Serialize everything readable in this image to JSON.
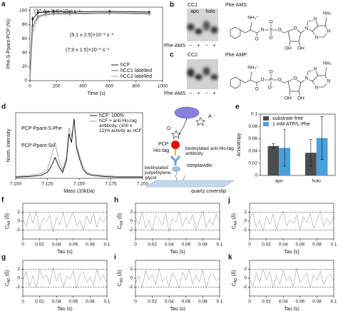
{
  "chart_data": [
    {
      "type": "line",
      "label": "a",
      "xlabel": "Time (s)",
      "ylabel": "Phe-S-Ppant-PCP (%)",
      "x": [
        0,
        20,
        60,
        120,
        180,
        300,
        600,
        900
      ],
      "series": [
        {
          "name": "hCF",
          "color": "#000000",
          "values": [
            0,
            88,
            97,
            98,
            99,
            98,
            99,
            98
          ],
          "errors": [
            0,
            4,
            3,
            3,
            2,
            3,
            2,
            2
          ]
        },
        {
          "name": "hCC1 labelled",
          "color": "#555555",
          "values": [
            0,
            78,
            92,
            95,
            96,
            96,
            97,
            96
          ],
          "errors": [
            0,
            6,
            4,
            3,
            3,
            3,
            3,
            3
          ]
        },
        {
          "name": "hCC2 labelled",
          "color": "#9a9a9a",
          "values": [
            0,
            70,
            90,
            94,
            95,
            95,
            96,
            95
          ],
          "errors": [
            0,
            7,
            5,
            4,
            3,
            4,
            3,
            3
          ]
        }
      ],
      "xlim": [
        0,
        1000
      ],
      "xticks": [
        0,
        200,
        400,
        600,
        800,
        1000
      ],
      "ylim": [
        0,
        105
      ],
      "yticks": [
        0,
        20,
        40,
        60,
        80,
        100
      ],
      "legend": "lower right",
      "annotations": [
        "(10.4 ± 3.4)×10⁻² s⁻¹",
        "(9.1 ± 2.5)×10⁻² s⁻¹",
        "(7.9 ± 1.5)×10⁻² s⁻¹"
      ]
    },
    {
      "type": "line",
      "label": "d",
      "xlabel": "Mass (10kDa)",
      "ylabel": "Norm. intensity",
      "x": [
        7.1,
        7.11,
        7.12,
        7.125,
        7.128,
        7.131,
        7.134,
        7.137,
        7.14,
        7.142,
        7.144,
        7.146,
        7.148,
        7.15,
        7.153,
        7.156,
        7.16,
        7.17,
        7.18,
        7.19,
        7.2
      ],
      "series": [
        {
          "name": "hCF: 100%",
          "color": "#000000",
          "style": "solid",
          "values": [
            0.02,
            0.03,
            0.05,
            0.1,
            0.2,
            0.35,
            0.2,
            0.1,
            0.3,
            0.75,
            0.6,
            1.0,
            0.5,
            0.35,
            0.15,
            0.08,
            0.05,
            0.03,
            0.02,
            0.02,
            0.02
          ]
        },
        {
          "name": "hCF + anti-His-tag antibody: (100 ± 12)% activity as hCF",
          "color": "#444444",
          "style": "dotted",
          "values": [
            0.03,
            0.05,
            0.08,
            0.15,
            0.35,
            0.6,
            0.3,
            0.15,
            0.35,
            0.85,
            0.7,
            0.95,
            0.55,
            0.4,
            0.2,
            0.1,
            0.07,
            0.05,
            0.03,
            0.03,
            0.03
          ]
        }
      ],
      "xlim": [
        7.1,
        7.2
      ],
      "xticks": [
        {
          "value": 7.1,
          "label": "7.100"
        },
        {
          "value": 7.125,
          "label": "7.125"
        },
        {
          "value": 7.15,
          "label": "7.150"
        },
        {
          "value": 7.175,
          "label": "7.175"
        },
        {
          "value": 7.2,
          "label": "7.200"
        }
      ],
      "ylim": [
        0,
        1.1
      ],
      "legend": "upper right",
      "annotations": [
        "PCP-Ppant-S-Phe",
        "PCP-Ppant-SH"
      ]
    },
    {
      "type": "bar",
      "label": "e",
      "ylabel": "Anisotropy",
      "categories": [
        "apo",
        "holo"
      ],
      "series": [
        {
          "name": "substrate-free",
          "color": "#4d4d4d",
          "values": [
            0.048,
            0.037
          ],
          "errors": [
            0.004,
            0.022
          ]
        },
        {
          "name": "1 mM ATP/L-Phe",
          "color": "#4a9fdd",
          "values": [
            0.045,
            0.061
          ],
          "errors": [
            0.03,
            0.035
          ]
        }
      ],
      "ylim": [
        0,
        0.1
      ],
      "yticks": [
        0,
        0.02,
        0.04,
        0.06,
        0.08,
        0.1
      ],
      "legend": "upper left"
    },
    {
      "type": "line",
      "label": "f",
      "xlabel": "Tau (s)",
      "ylabel": [
        "C",
        "AA",
        " (δ)"
      ],
      "x": [
        0,
        0.004,
        0.008,
        0.012,
        0.016,
        0.02,
        0.024,
        0.028,
        0.032,
        0.036,
        0.04,
        0.044,
        0.048,
        0.052,
        0.056,
        0.06,
        0.064,
        0.068,
        0.072,
        0.076,
        0.08,
        0.084,
        0.088,
        0.092,
        0.096,
        0.1
      ],
      "series": [
        {
          "color": "#8c8c8c",
          "values": [
            0.3,
            -1.2,
            1.8,
            -0.5,
            2.3,
            -1.9,
            0.7,
            -0.2,
            1.4,
            -2.4,
            0.9,
            -0.8,
            1.9,
            -1.5,
            0.4,
            2.1,
            -1.1,
            0.2,
            -2.0,
            1.2,
            -0.6,
            1.7,
            -1.4,
            0.8,
            -0.3,
            1.1
          ]
        }
      ],
      "xlim": [
        0,
        0.1
      ],
      "xticks": [
        0,
        0.02,
        0.04,
        0.06,
        0.08,
        0.1
      ],
      "ylim": [
        -4,
        4
      ],
      "yticks": [
        -2,
        0,
        2
      ],
      "reference_lines": [
        -2,
        2
      ]
    },
    {
      "type": "line",
      "label": "g",
      "xlabel": "Tau (s)",
      "ylabel": [
        "C",
        "AD",
        " (δ)"
      ],
      "x": [
        0,
        0.004,
        0.008,
        0.012,
        0.016,
        0.02,
        0.024,
        0.028,
        0.032,
        0.036,
        0.04,
        0.044,
        0.048,
        0.052,
        0.056,
        0.06,
        0.064,
        0.068,
        0.072,
        0.076,
        0.08,
        0.084,
        0.088,
        0.092,
        0.096,
        0.1
      ],
      "series": [
        {
          "color": "#8c8c8c",
          "values": [
            -0.4,
            1.5,
            -1.8,
            0.6,
            -2.2,
            1.9,
            -0.1,
            0.8,
            -1.3,
            2.4,
            -0.7,
            1.1,
            -1.9,
            0.5,
            -0.2,
            1.6,
            -2.3,
            0.9,
            1.3,
            -1.0,
            0.3,
            -1.7,
            2.0,
            -0.5,
            0.7,
            -1.2
          ]
        }
      ],
      "xlim": [
        0,
        0.1
      ],
      "xticks": [
        0,
        0.02,
        0.04,
        0.06,
        0.08,
        0.1
      ],
      "ylim": [
        -4,
        4
      ],
      "yticks": [
        -2,
        0,
        2
      ],
      "reference_lines": [
        -2,
        2
      ]
    },
    {
      "type": "line",
      "label": "h",
      "xlabel": "Tau (s)",
      "ylabel": [
        "C",
        "DA",
        " (δ)"
      ],
      "x": [
        0,
        0.004,
        0.008,
        0.012,
        0.016,
        0.02,
        0.024,
        0.028,
        0.032,
        0.036,
        0.04,
        0.044,
        0.048,
        0.052,
        0.056,
        0.06,
        0.064,
        0.068,
        0.072,
        0.076,
        0.08,
        0.084,
        0.088,
        0.092,
        0.096,
        0.1
      ],
      "series": [
        {
          "color": "#8c8c8c",
          "values": [
            1.0,
            -0.8,
            2.0,
            -1.6,
            0.2,
            -2.1,
            1.3,
            0.5,
            -1.0,
            1.8,
            -2.4,
            0.6,
            -0.3,
            2.2,
            -1.2,
            0.9,
            -0.6,
            1.5,
            -1.9,
            0.1,
            2.3,
            -1.4,
            0.4,
            -0.9,
            1.6,
            -0.2
          ]
        }
      ],
      "xlim": [
        0,
        0.1
      ],
      "xticks": [
        0,
        0.02,
        0.04,
        0.06,
        0.08,
        0.1
      ],
      "ylim": [
        -4,
        4
      ],
      "yticks": [
        -2,
        0,
        2
      ],
      "reference_lines": [
        -2,
        2
      ]
    },
    {
      "type": "line",
      "label": "i",
      "xlabel": "Tau (s)",
      "ylabel": [
        "C",
        "DD",
        " (δ)"
      ],
      "x": [
        0,
        0.004,
        0.008,
        0.012,
        0.016,
        0.02,
        0.024,
        0.028,
        0.032,
        0.036,
        0.04,
        0.044,
        0.048,
        0.052,
        0.056,
        0.06,
        0.064,
        0.068,
        0.072,
        0.076,
        0.08,
        0.084,
        0.088,
        0.092,
        0.096,
        0.1
      ],
      "series": [
        {
          "color": "#8c8c8c",
          "values": [
            -1.1,
            0.6,
            -2.0,
            1.7,
            -0.4,
            0.9,
            -1.5,
            2.3,
            -0.8,
            0.3,
            -1.8,
            1.2,
            -0.1,
            -2.2,
            1.4,
            -0.5,
            2.0,
            -1.3,
            0.7,
            -0.9,
            1.9,
            -2.4,
            0.5,
            1.1,
            -0.6,
            0.2
          ]
        }
      ],
      "xlim": [
        0,
        0.1
      ],
      "xticks": [
        0,
        0.02,
        0.04,
        0.06,
        0.08,
        0.1
      ],
      "ylim": [
        -4,
        4
      ],
      "yticks": [
        -2,
        0,
        2
      ],
      "reference_lines": [
        -2,
        2
      ]
    },
    {
      "type": "line",
      "label": "j",
      "xlabel": "Tau (s)",
      "ylabel": [
        "C",
        "AA",
        " (δ)"
      ],
      "x": [
        0,
        0.004,
        0.008,
        0.012,
        0.016,
        0.02,
        0.024,
        0.028,
        0.032,
        0.036,
        0.04,
        0.044,
        0.048,
        0.052,
        0.056,
        0.06,
        0.064,
        0.068,
        0.072,
        0.076,
        0.08,
        0.084,
        0.088,
        0.092,
        0.096,
        0.1
      ],
      "series": [
        {
          "color": "#8c8c8c",
          "values": [
            0.5,
            1.9,
            -1.4,
            0.2,
            -2.3,
            1.1,
            -0.7,
            1.6,
            -1.9,
            0.8,
            2.2,
            -1.1,
            0.3,
            -0.5,
            1.4,
            -2.0,
            0.9,
            -0.3,
            1.7,
            -1.6,
            0.1,
            2.4,
            -1.2,
            0.6,
            -0.8,
            1.3
          ]
        }
      ],
      "xlim": [
        0,
        0.1
      ],
      "xticks": [
        0,
        0.02,
        0.04,
        0.06,
        0.08,
        0.1
      ],
      "ylim": [
        -4,
        4
      ],
      "yticks": [
        -2,
        0,
        2
      ],
      "reference_lines": [
        -2,
        2
      ]
    },
    {
      "type": "line",
      "label": "k",
      "xlabel": "Tau (s)",
      "ylabel": [
        "C",
        "AD",
        " (δ)"
      ],
      "x": [
        0,
        0.004,
        0.008,
        0.012,
        0.016,
        0.02,
        0.024,
        0.028,
        0.032,
        0.036,
        0.04,
        0.044,
        0.048,
        0.052,
        0.056,
        0.06,
        0.064,
        0.068,
        0.072,
        0.076,
        0.08,
        0.084,
        0.088,
        0.092,
        0.096,
        0.1
      ],
      "series": [
        {
          "color": "#8c8c8c",
          "values": [
            -0.2,
            -1.7,
            1.2,
            -0.9,
            2.1,
            -0.4,
            1.5,
            -2.2,
            0.7,
            -1.3,
            1.8,
            -0.6,
            0.4,
            -1.9,
            2.3,
            -1.0,
            0.2,
            1.1,
            -2.1,
            0.8,
            -0.5,
            1.6,
            -1.5,
            0.3,
            1.0,
            -0.7
          ]
        }
      ],
      "xlim": [
        0,
        0.1
      ],
      "xticks": [
        0,
        0.02,
        0.04,
        0.06,
        0.08,
        0.1
      ],
      "ylim": [
        -4,
        4
      ],
      "yticks": [
        -2,
        0,
        2
      ],
      "reference_lines": [
        -2,
        2
      ]
    }
  ],
  "gels": [
    {
      "label": "b",
      "title": "CC1",
      "lanes": [
        "apo",
        "holo"
      ],
      "row_label": "Phe-AMS",
      "signs": [
        "−",
        "+",
        "−",
        "+"
      ]
    },
    {
      "label": "c",
      "title": "CC2",
      "row_label": "Phe-AMS",
      "signs": [
        "−",
        "+",
        "−",
        "+"
      ]
    }
  ],
  "structures": [
    {
      "name": "Phe-AMS:",
      "atoms": [
        "NH₃⁺",
        "O",
        "N",
        "S",
        "O",
        "O",
        "O",
        "O",
        "N",
        "N",
        "N",
        "N",
        "NH₂",
        "OH",
        "OH"
      ]
    },
    {
      "name": "Phe-AMP:",
      "atoms": [
        "NH₃⁺",
        "O",
        "O",
        "P",
        "O",
        "O⁻",
        "O",
        "O",
        "N",
        "N",
        "N",
        "N",
        "NH₂",
        "OH",
        "OH"
      ]
    }
  ],
  "diagram": {
    "labels": [
      "A",
      "D",
      "PCP",
      "His-tag",
      "biotinylated anti-His-tag antibody",
      "streptavidin",
      "biotinylated polyethylene glycol",
      "quartz coverslip"
    ]
  }
}
